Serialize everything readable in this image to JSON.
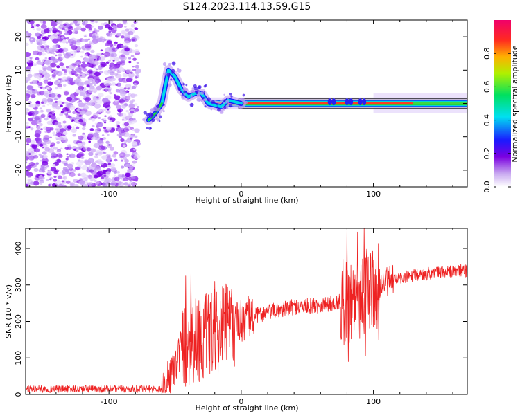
{
  "title": "S124.2023.114.13.59.G15",
  "chart_data": [
    {
      "type": "heatmap",
      "xlabel": "Height of straight line (km)",
      "ylabel": "Frequency (Hz)",
      "xlim": [
        -163,
        171
      ],
      "ylim": [
        -25,
        25
      ],
      "xticks": [
        -100,
        0,
        100
      ],
      "yticks": [
        -20,
        -10,
        0,
        10,
        20
      ],
      "colorbar": {
        "label": "Normalized spectral amplitude",
        "range": [
          0,
          1
        ],
        "ticks": [
          "0.0",
          "0.2",
          "0.4",
          "0.6",
          "0.8"
        ]
      },
      "ridge": [
        {
          "x": -70,
          "y": -5
        },
        {
          "x": -65,
          "y": -3
        },
        {
          "x": -60,
          "y": 0
        },
        {
          "x": -55,
          "y": 10
        },
        {
          "x": -50,
          "y": 8
        },
        {
          "x": -45,
          "y": 4
        },
        {
          "x": -40,
          "y": 2
        },
        {
          "x": -35,
          "y": 3
        },
        {
          "x": -30,
          "y": 3
        },
        {
          "x": -25,
          "y": 0
        },
        {
          "x": -15,
          "y": -1
        },
        {
          "x": -10,
          "y": 1
        },
        {
          "x": 0,
          "y": 0
        },
        {
          "x": 171,
          "y": 0
        }
      ]
    },
    {
      "type": "line",
      "xlabel": "Height of straight line (km)",
      "ylabel": "SNR (10 * v/v)",
      "xlim": [
        -163,
        171
      ],
      "ylim": [
        0,
        455
      ],
      "xticks": [
        -100,
        0,
        100
      ],
      "yticks": [
        0,
        100,
        200,
        300,
        400
      ],
      "series_color": "#ee2222",
      "envelope": [
        {
          "x": -163,
          "y": 15
        },
        {
          "x": -60,
          "y": 15
        },
        {
          "x": -55,
          "y": 40
        },
        {
          "x": -45,
          "y": 130
        },
        {
          "x": -35,
          "y": 150
        },
        {
          "x": -25,
          "y": 160
        },
        {
          "x": -15,
          "y": 180
        },
        {
          "x": -5,
          "y": 195
        },
        {
          "x": 5,
          "y": 210
        },
        {
          "x": 20,
          "y": 225
        },
        {
          "x": 40,
          "y": 240
        },
        {
          "x": 60,
          "y": 245
        },
        {
          "x": 78,
          "y": 255
        },
        {
          "x": 90,
          "y": 270
        },
        {
          "x": 100,
          "y": 295
        },
        {
          "x": 115,
          "y": 315
        },
        {
          "x": 130,
          "y": 325
        },
        {
          "x": 150,
          "y": 335
        },
        {
          "x": 171,
          "y": 340
        }
      ],
      "spikes": [
        {
          "x": -42,
          "y": 325
        },
        {
          "x": -38,
          "y": 332
        },
        {
          "x": -20,
          "y": 310
        },
        {
          "x": -10,
          "y": 250
        },
        {
          "x": 80,
          "y": 450
        },
        {
          "x": 81,
          "y": 90
        },
        {
          "x": 88,
          "y": 445
        },
        {
          "x": 93,
          "y": 455
        },
        {
          "x": 94,
          "y": 105
        },
        {
          "x": 104,
          "y": 150
        }
      ]
    }
  ]
}
